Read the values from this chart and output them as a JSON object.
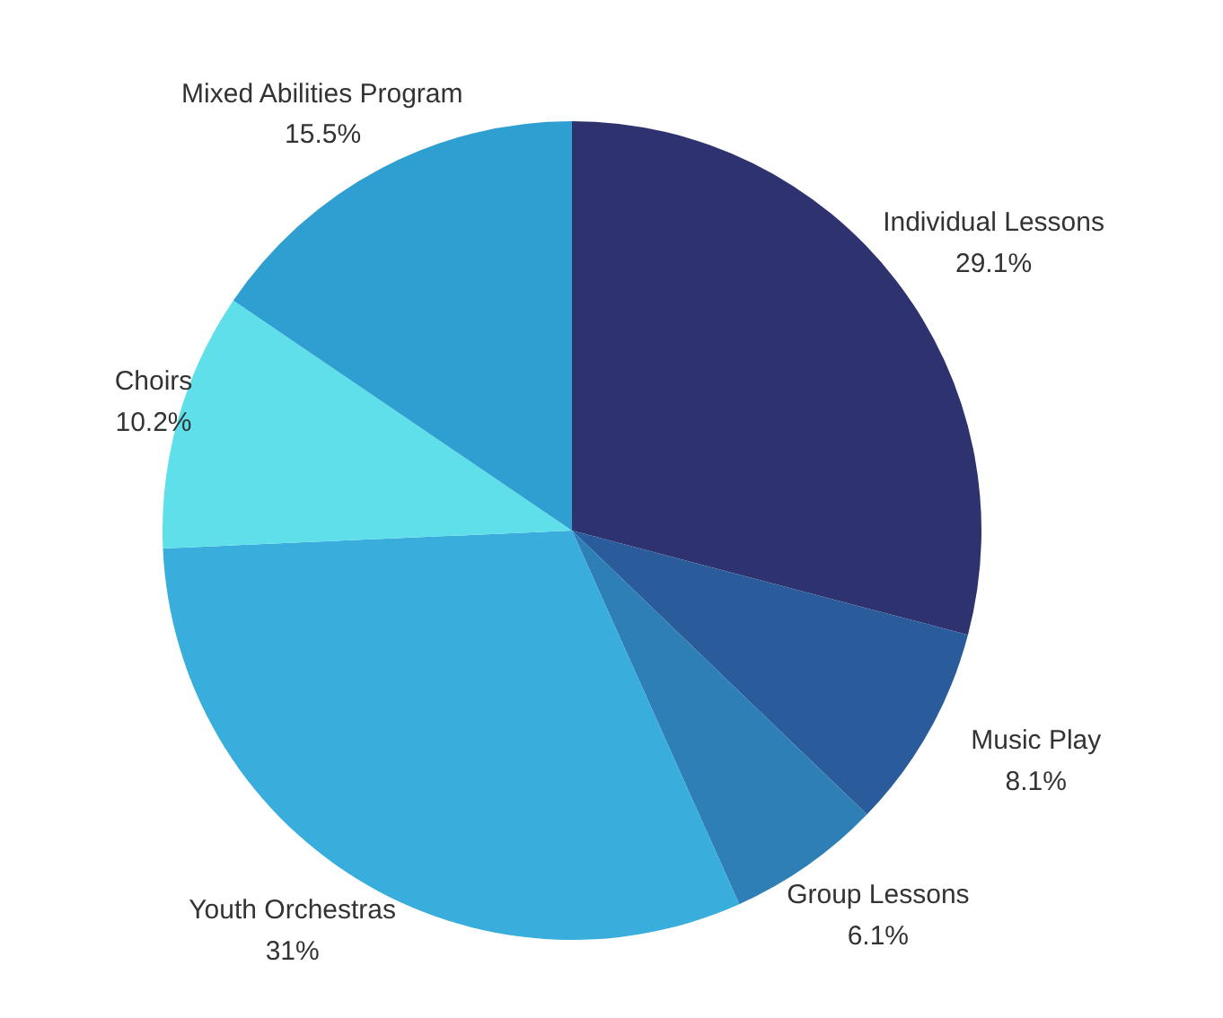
{
  "chart_data": {
    "type": "pie",
    "categories": [
      "Individual Lessons",
      "Music Play",
      "Group Lessons",
      "Youth Orchestras",
      "Choirs",
      "Mixed Abilities Program"
    ],
    "values": [
      29.1,
      8.1,
      6.1,
      31,
      10.2,
      15.5
    ],
    "colors": [
      "#2e3370",
      "#2a5c9b",
      "#2d7fb6",
      "#39addb",
      "#5fdfe9",
      "#2e9fd0"
    ],
    "value_labels": [
      "29.1%",
      "8.1%",
      "6.1%",
      "31%",
      "10.2%",
      "15.5%"
    ],
    "legend": false
  }
}
